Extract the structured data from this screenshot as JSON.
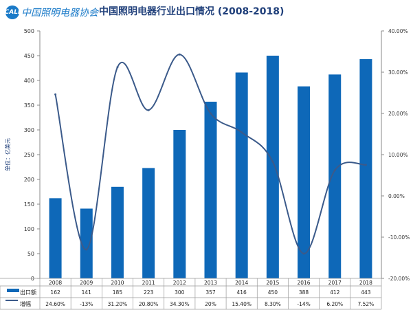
{
  "logo": {
    "mark": "CALI",
    "text": "中国照明电器协会"
  },
  "chart_data": {
    "type": "bar",
    "title": "中国照明电器行业出口情况  (2008-2018)",
    "ylabel": "单位：亿美元",
    "categories": [
      "2008",
      "2009",
      "2010",
      "2011",
      "2012",
      "2013",
      "2014",
      "2015",
      "2016",
      "2017",
      "2018"
    ],
    "ylim": [
      0,
      500
    ],
    "y_ticks": [
      0,
      50,
      100,
      150,
      200,
      250,
      300,
      350,
      400,
      450,
      500
    ],
    "y2lim": [
      -20,
      40
    ],
    "y2_ticks": [
      "-20.00%",
      "-10.00%",
      "0.00%",
      "10.00%",
      "20.00%",
      "30.00%",
      "40.00%"
    ],
    "grid": false,
    "legend": "table-bottom",
    "series": [
      {
        "name": "出口额",
        "type": "bar",
        "color": "#0e68b8",
        "values": [
          162,
          141,
          185,
          223,
          300,
          357,
          416,
          450,
          388,
          412,
          443
        ],
        "labels": [
          "162",
          "141",
          "185",
          "223",
          "300",
          "357",
          "416",
          "450",
          "388",
          "412",
          "443"
        ]
      },
      {
        "name": "增幅",
        "type": "line",
        "axis": "right",
        "color": "#3b5a8a",
        "values": [
          24.6,
          -13,
          31.2,
          20.8,
          34.3,
          20,
          15.4,
          8.3,
          -14,
          6.2,
          7.52
        ],
        "labels": [
          "24.60%",
          "-13%",
          "31.20%",
          "20.80%",
          "34.30%",
          "20%",
          "15.40%",
          "8.30%",
          "-14%",
          "6.20%",
          "7.52%"
        ]
      }
    ]
  }
}
